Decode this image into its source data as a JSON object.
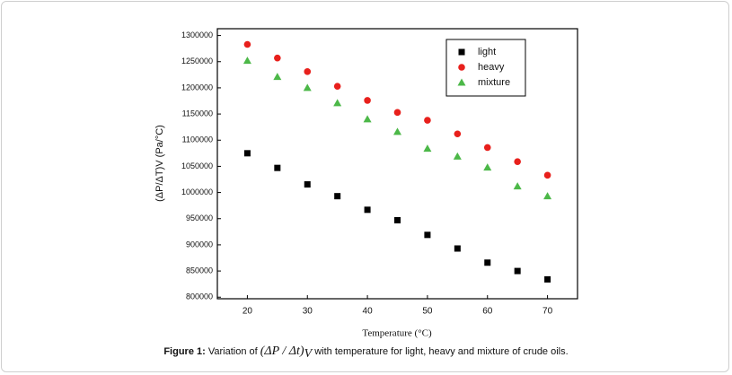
{
  "chart_data": {
    "type": "scatter",
    "x_label": "Temperature (°C)",
    "y_label": "(ΔP/ΔT)V (Pa/°C)",
    "x": [
      20,
      25,
      30,
      35,
      40,
      45,
      50,
      55,
      60,
      65,
      70
    ],
    "series": [
      {
        "name": "light",
        "color": "#000000",
        "marker": "square",
        "values": [
          1075000,
          1047000,
          1015500,
          993000,
          967000,
          947000,
          919000,
          893000,
          866000,
          850000,
          834000
        ]
      },
      {
        "name": "heavy",
        "color": "#e8201c",
        "marker": "circle",
        "values": [
          1283000,
          1257000,
          1231000,
          1203000,
          1176000,
          1153000,
          1138000,
          1112000,
          1086000,
          1059000,
          1033000
        ]
      },
      {
        "name": "mixture",
        "color": "#4cb848",
        "marker": "triangle",
        "values": [
          1252000,
          1221000,
          1200000,
          1171000,
          1140000,
          1116000,
          1084000,
          1069000,
          1048000,
          1012000,
          993000
        ]
      }
    ],
    "xlim": [
      15,
      75
    ],
    "xticks": [
      20,
      30,
      40,
      50,
      60,
      70
    ],
    "ylim": [
      797000,
      1313000
    ],
    "yticks": [
      800000,
      850000,
      900000,
      950000,
      1000000,
      1050000,
      1100000,
      1150000,
      1200000,
      1250000,
      1300000
    ],
    "legend": "top-right"
  },
  "caption": {
    "label": "Figure 1:",
    "pre": "Variation of",
    "formula": "(ΔP / Δt)",
    "formula_sub": "V",
    "post": "with temperature for light, heavy and mixture of crude oils."
  }
}
